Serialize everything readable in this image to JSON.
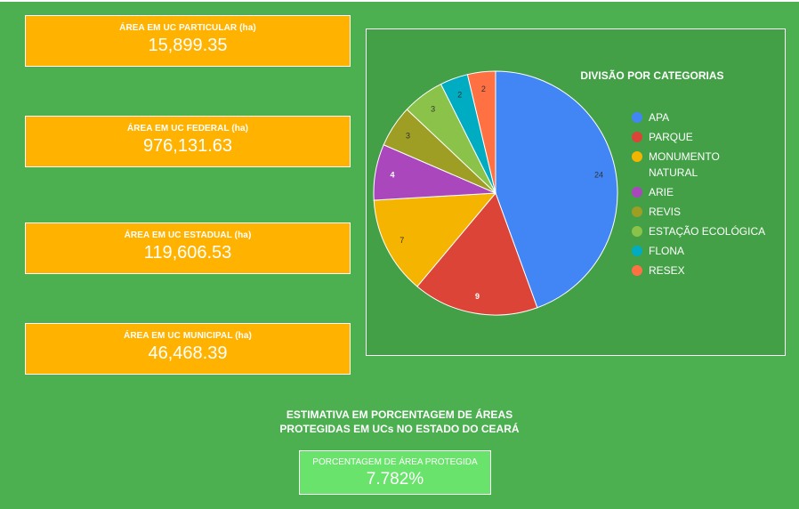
{
  "cards": [
    {
      "label": "ÁREA EM UC PARTICULAR (ha)",
      "value": "15,899.35"
    },
    {
      "label": "ÁREA EM UC FEDERAL (ha)",
      "value": "976,131.63"
    },
    {
      "label": "ÁREA EM UC ESTADUAL (ha)",
      "value": "119,606.53"
    },
    {
      "label": "ÁREA EM UC MUNICIPAL (ha)",
      "value": "46,468.39"
    }
  ],
  "estimate": {
    "title_line1": "ESTIMATIVA EM PORCENTAGEM DE ÁREAS",
    "title_line2": "PROTEGIDAS EM UCs NO ESTADO DO CEARÁ",
    "label": "PORCENTAGEM DE ÁREA PROTEGIDA",
    "value": "7.782%"
  },
  "colors": {
    "background": "#4caf50",
    "card": "#ffb300",
    "chart_area": "#43a047",
    "percent_card": "#69e36b"
  },
  "chart_data": {
    "type": "pie",
    "title": "DIVISÃO POR CATEGORIAS",
    "legend_position": "right",
    "slices": [
      {
        "label": "APA",
        "value": 24,
        "color": "#4285f4"
      },
      {
        "label": "PARQUE",
        "value": 9,
        "color": "#db4437"
      },
      {
        "label": "MONUMENTO NATURAL",
        "value": 7,
        "color": "#f4b400"
      },
      {
        "label": "ARIE",
        "value": 4,
        "color": "#ab47bc"
      },
      {
        "label": "REVIS",
        "value": 3,
        "color": "#9e9d24"
      },
      {
        "label": "ESTAÇÃO ECOLÓGICA",
        "value": 3,
        "color": "#8bc34a"
      },
      {
        "label": "FLONA",
        "value": 2,
        "color": "#00acc1"
      },
      {
        "label": "RESEX",
        "value": 2,
        "color": "#ff7043"
      }
    ]
  }
}
